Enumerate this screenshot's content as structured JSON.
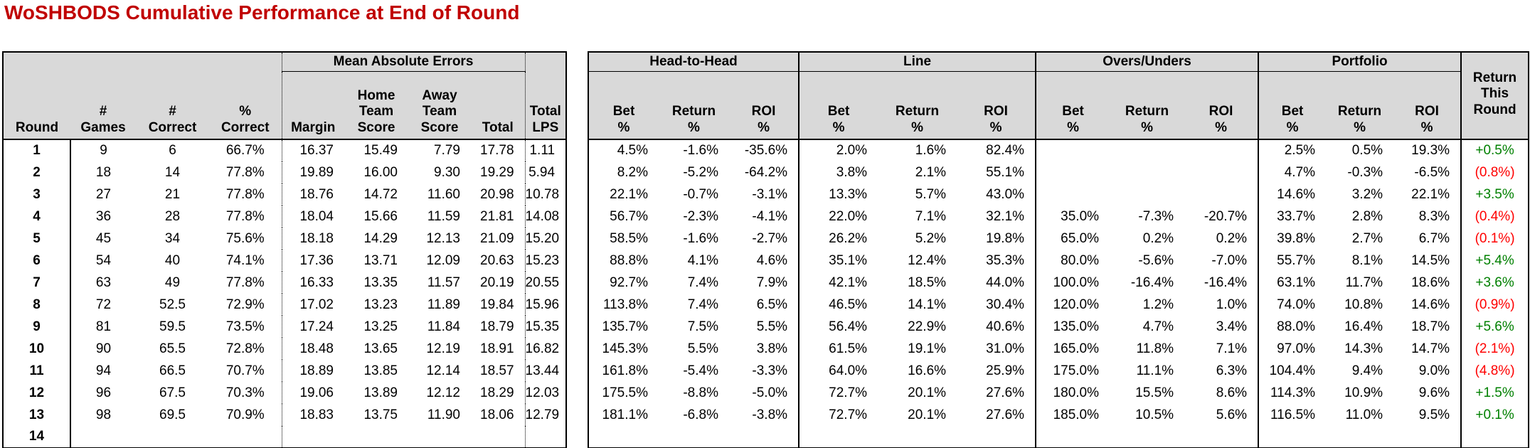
{
  "title": "WoSHBODS Cumulative Performance at End of Round",
  "colors": {
    "title": "#C00000",
    "header_bg": "#D9D9D9",
    "positive_return": "#008000",
    "negative_return": "#FF0000"
  },
  "left_table": {
    "group_header": "Mean Absolute Errors",
    "columns": [
      "Round",
      "#\nGames",
      "#\nCorrect",
      "%\nCorrect",
      "Margin",
      "Home\nTeam\nScore",
      "Away\nTeam\nScore",
      "Total",
      "Total\nLPS"
    ],
    "rows": [
      [
        "1",
        "9",
        "6",
        "66.7%",
        "16.37",
        "15.49",
        "7.79",
        "17.78",
        "1.11"
      ],
      [
        "2",
        "18",
        "14",
        "77.8%",
        "19.89",
        "16.00",
        "9.30",
        "19.29",
        "5.94"
      ],
      [
        "3",
        "27",
        "21",
        "77.8%",
        "18.76",
        "14.72",
        "11.60",
        "20.98",
        "10.78"
      ],
      [
        "4",
        "36",
        "28",
        "77.8%",
        "18.04",
        "15.66",
        "11.59",
        "21.81",
        "14.08"
      ],
      [
        "5",
        "45",
        "34",
        "75.6%",
        "18.18",
        "14.29",
        "12.13",
        "21.09",
        "15.20"
      ],
      [
        "6",
        "54",
        "40",
        "74.1%",
        "17.36",
        "13.71",
        "12.09",
        "20.63",
        "15.23"
      ],
      [
        "7",
        "63",
        "49",
        "77.8%",
        "16.33",
        "13.35",
        "11.57",
        "20.19",
        "20.55"
      ],
      [
        "8",
        "72",
        "52.5",
        "72.9%",
        "17.02",
        "13.23",
        "11.89",
        "19.84",
        "15.96"
      ],
      [
        "9",
        "81",
        "59.5",
        "73.5%",
        "17.24",
        "13.25",
        "11.84",
        "18.79",
        "15.35"
      ],
      [
        "10",
        "90",
        "65.5",
        "72.8%",
        "18.48",
        "13.65",
        "12.19",
        "18.91",
        "16.82"
      ],
      [
        "11",
        "94",
        "66.5",
        "70.7%",
        "18.89",
        "13.85",
        "12.14",
        "18.57",
        "13.44"
      ],
      [
        "12",
        "96",
        "67.5",
        "70.3%",
        "19.06",
        "13.89",
        "12.12",
        "18.29",
        "12.03"
      ],
      [
        "13",
        "98",
        "69.5",
        "70.9%",
        "18.83",
        "13.75",
        "11.90",
        "18.06",
        "12.79"
      ],
      [
        "14",
        "",
        "",
        "",
        "",
        "",
        "",
        "",
        ""
      ]
    ]
  },
  "right_table": {
    "groups": [
      "Head-to-Head",
      "Line",
      "Overs/Unders",
      "Portfolio"
    ],
    "sub_columns": [
      "Bet\n%",
      "Return\n%",
      "ROI\n%"
    ],
    "last_column": "Return\nThis\nRound",
    "rows": [
      {
        "h2h": [
          "4.5%",
          "-1.6%",
          "-35.6%"
        ],
        "line": [
          "2.0%",
          "1.6%",
          "82.4%"
        ],
        "ou": [
          "",
          "",
          ""
        ],
        "portfolio": [
          "2.5%",
          "0.5%",
          "19.3%"
        ],
        "return_this_round": "+0.5%"
      },
      {
        "h2h": [
          "8.2%",
          "-5.2%",
          "-64.2%"
        ],
        "line": [
          "3.8%",
          "2.1%",
          "55.1%"
        ],
        "ou": [
          "",
          "",
          ""
        ],
        "portfolio": [
          "4.7%",
          "-0.3%",
          "-6.5%"
        ],
        "return_this_round": "(0.8%)"
      },
      {
        "h2h": [
          "22.1%",
          "-0.7%",
          "-3.1%"
        ],
        "line": [
          "13.3%",
          "5.7%",
          "43.0%"
        ],
        "ou": [
          "",
          "",
          ""
        ],
        "portfolio": [
          "14.6%",
          "3.2%",
          "22.1%"
        ],
        "return_this_round": "+3.5%"
      },
      {
        "h2h": [
          "56.7%",
          "-2.3%",
          "-4.1%"
        ],
        "line": [
          "22.0%",
          "7.1%",
          "32.1%"
        ],
        "ou": [
          "35.0%",
          "-7.3%",
          "-20.7%"
        ],
        "portfolio": [
          "33.7%",
          "2.8%",
          "8.3%"
        ],
        "return_this_round": "(0.4%)"
      },
      {
        "h2h": [
          "58.5%",
          "-1.6%",
          "-2.7%"
        ],
        "line": [
          "26.2%",
          "5.2%",
          "19.8%"
        ],
        "ou": [
          "65.0%",
          "0.2%",
          "0.2%"
        ],
        "portfolio": [
          "39.8%",
          "2.7%",
          "6.7%"
        ],
        "return_this_round": "(0.1%)"
      },
      {
        "h2h": [
          "88.8%",
          "4.1%",
          "4.6%"
        ],
        "line": [
          "35.1%",
          "12.4%",
          "35.3%"
        ],
        "ou": [
          "80.0%",
          "-5.6%",
          "-7.0%"
        ],
        "portfolio": [
          "55.7%",
          "8.1%",
          "14.5%"
        ],
        "return_this_round": "+5.4%"
      },
      {
        "h2h": [
          "92.7%",
          "7.4%",
          "7.9%"
        ],
        "line": [
          "42.1%",
          "18.5%",
          "44.0%"
        ],
        "ou": [
          "100.0%",
          "-16.4%",
          "-16.4%"
        ],
        "portfolio": [
          "63.1%",
          "11.7%",
          "18.6%"
        ],
        "return_this_round": "+3.6%"
      },
      {
        "h2h": [
          "113.8%",
          "7.4%",
          "6.5%"
        ],
        "line": [
          "46.5%",
          "14.1%",
          "30.4%"
        ],
        "ou": [
          "120.0%",
          "1.2%",
          "1.0%"
        ],
        "portfolio": [
          "74.0%",
          "10.8%",
          "14.6%"
        ],
        "return_this_round": "(0.9%)"
      },
      {
        "h2h": [
          "135.7%",
          "7.5%",
          "5.5%"
        ],
        "line": [
          "56.4%",
          "22.9%",
          "40.6%"
        ],
        "ou": [
          "135.0%",
          "4.7%",
          "3.4%"
        ],
        "portfolio": [
          "88.0%",
          "16.4%",
          "18.7%"
        ],
        "return_this_round": "+5.6%"
      },
      {
        "h2h": [
          "145.3%",
          "5.5%",
          "3.8%"
        ],
        "line": [
          "61.5%",
          "19.1%",
          "31.0%"
        ],
        "ou": [
          "165.0%",
          "11.8%",
          "7.1%"
        ],
        "portfolio": [
          "97.0%",
          "14.3%",
          "14.7%"
        ],
        "return_this_round": "(2.1%)"
      },
      {
        "h2h": [
          "161.8%",
          "-5.4%",
          "-3.3%"
        ],
        "line": [
          "64.0%",
          "16.6%",
          "25.9%"
        ],
        "ou": [
          "175.0%",
          "11.1%",
          "6.3%"
        ],
        "portfolio": [
          "104.4%",
          "9.4%",
          "9.0%"
        ],
        "return_this_round": "(4.8%)"
      },
      {
        "h2h": [
          "175.5%",
          "-8.8%",
          "-5.0%"
        ],
        "line": [
          "72.7%",
          "20.1%",
          "27.6%"
        ],
        "ou": [
          "180.0%",
          "15.5%",
          "8.6%"
        ],
        "portfolio": [
          "114.3%",
          "10.9%",
          "9.6%"
        ],
        "return_this_round": "+1.5%"
      },
      {
        "h2h": [
          "181.1%",
          "-6.8%",
          "-3.8%"
        ],
        "line": [
          "72.7%",
          "20.1%",
          "27.6%"
        ],
        "ou": [
          "185.0%",
          "10.5%",
          "5.6%"
        ],
        "portfolio": [
          "116.5%",
          "11.0%",
          "9.5%"
        ],
        "return_this_round": "+0.1%"
      },
      {
        "h2h": [
          "",
          "",
          ""
        ],
        "line": [
          "",
          "",
          ""
        ],
        "ou": [
          "",
          "",
          ""
        ],
        "portfolio": [
          "",
          "",
          ""
        ],
        "return_this_round": ""
      }
    ]
  }
}
